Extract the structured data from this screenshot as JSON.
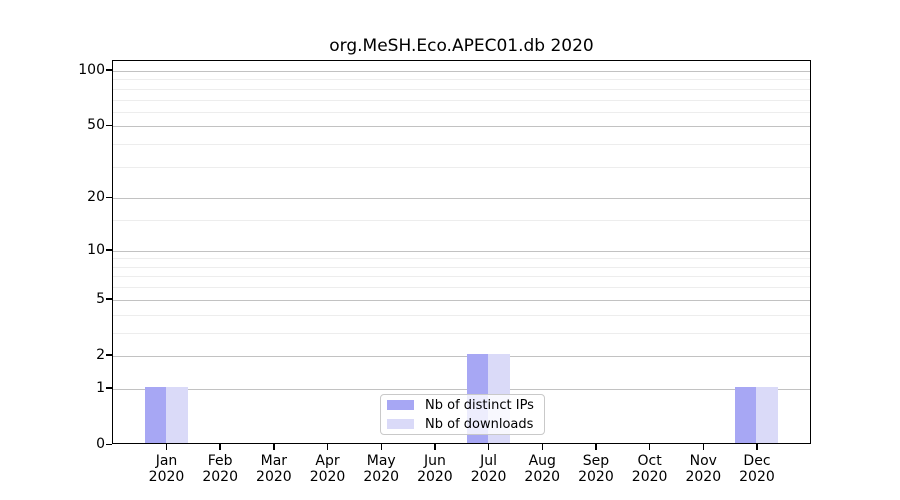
{
  "title": "org.MeSH.Eco.APEC01.db 2020",
  "chart_data": {
    "type": "bar",
    "title": "org.MeSH.Eco.APEC01.db 2020",
    "x_months": [
      "Jan",
      "Feb",
      "Mar",
      "Apr",
      "May",
      "Jun",
      "Jul",
      "Aug",
      "Sep",
      "Oct",
      "Nov",
      "Dec"
    ],
    "x_year": "2020",
    "series": [
      {
        "name": "Nb of distinct IPs",
        "color": "#a7a7f4",
        "values": [
          1,
          0,
          0,
          0,
          0,
          0,
          2,
          0,
          0,
          0,
          0,
          1
        ]
      },
      {
        "name": "Nb of downloads",
        "color": "#dadaf8",
        "values": [
          1,
          0,
          0,
          0,
          0,
          0,
          2,
          0,
          0,
          0,
          0,
          1
        ]
      }
    ],
    "y_axis": {
      "scale": "log10(1+x)",
      "tick_labels": [
        "0",
        "1",
        "2",
        "5",
        "10",
        "20",
        "50",
        "100"
      ],
      "tick_values": [
        0,
        1,
        2,
        5,
        10,
        20,
        50,
        100
      ],
      "minor_gridline_values": [
        3,
        4,
        6,
        7,
        8,
        9,
        15,
        30,
        40,
        60,
        70,
        80,
        90
      ],
      "top_value": 113
    },
    "legend_position": "inside-bottom-center",
    "grid": "horizontal",
    "colors": {
      "major_grid": "#c2c2c2",
      "minor_grid": "#ededed",
      "axis": "#000000",
      "background": "#ffffff"
    }
  }
}
